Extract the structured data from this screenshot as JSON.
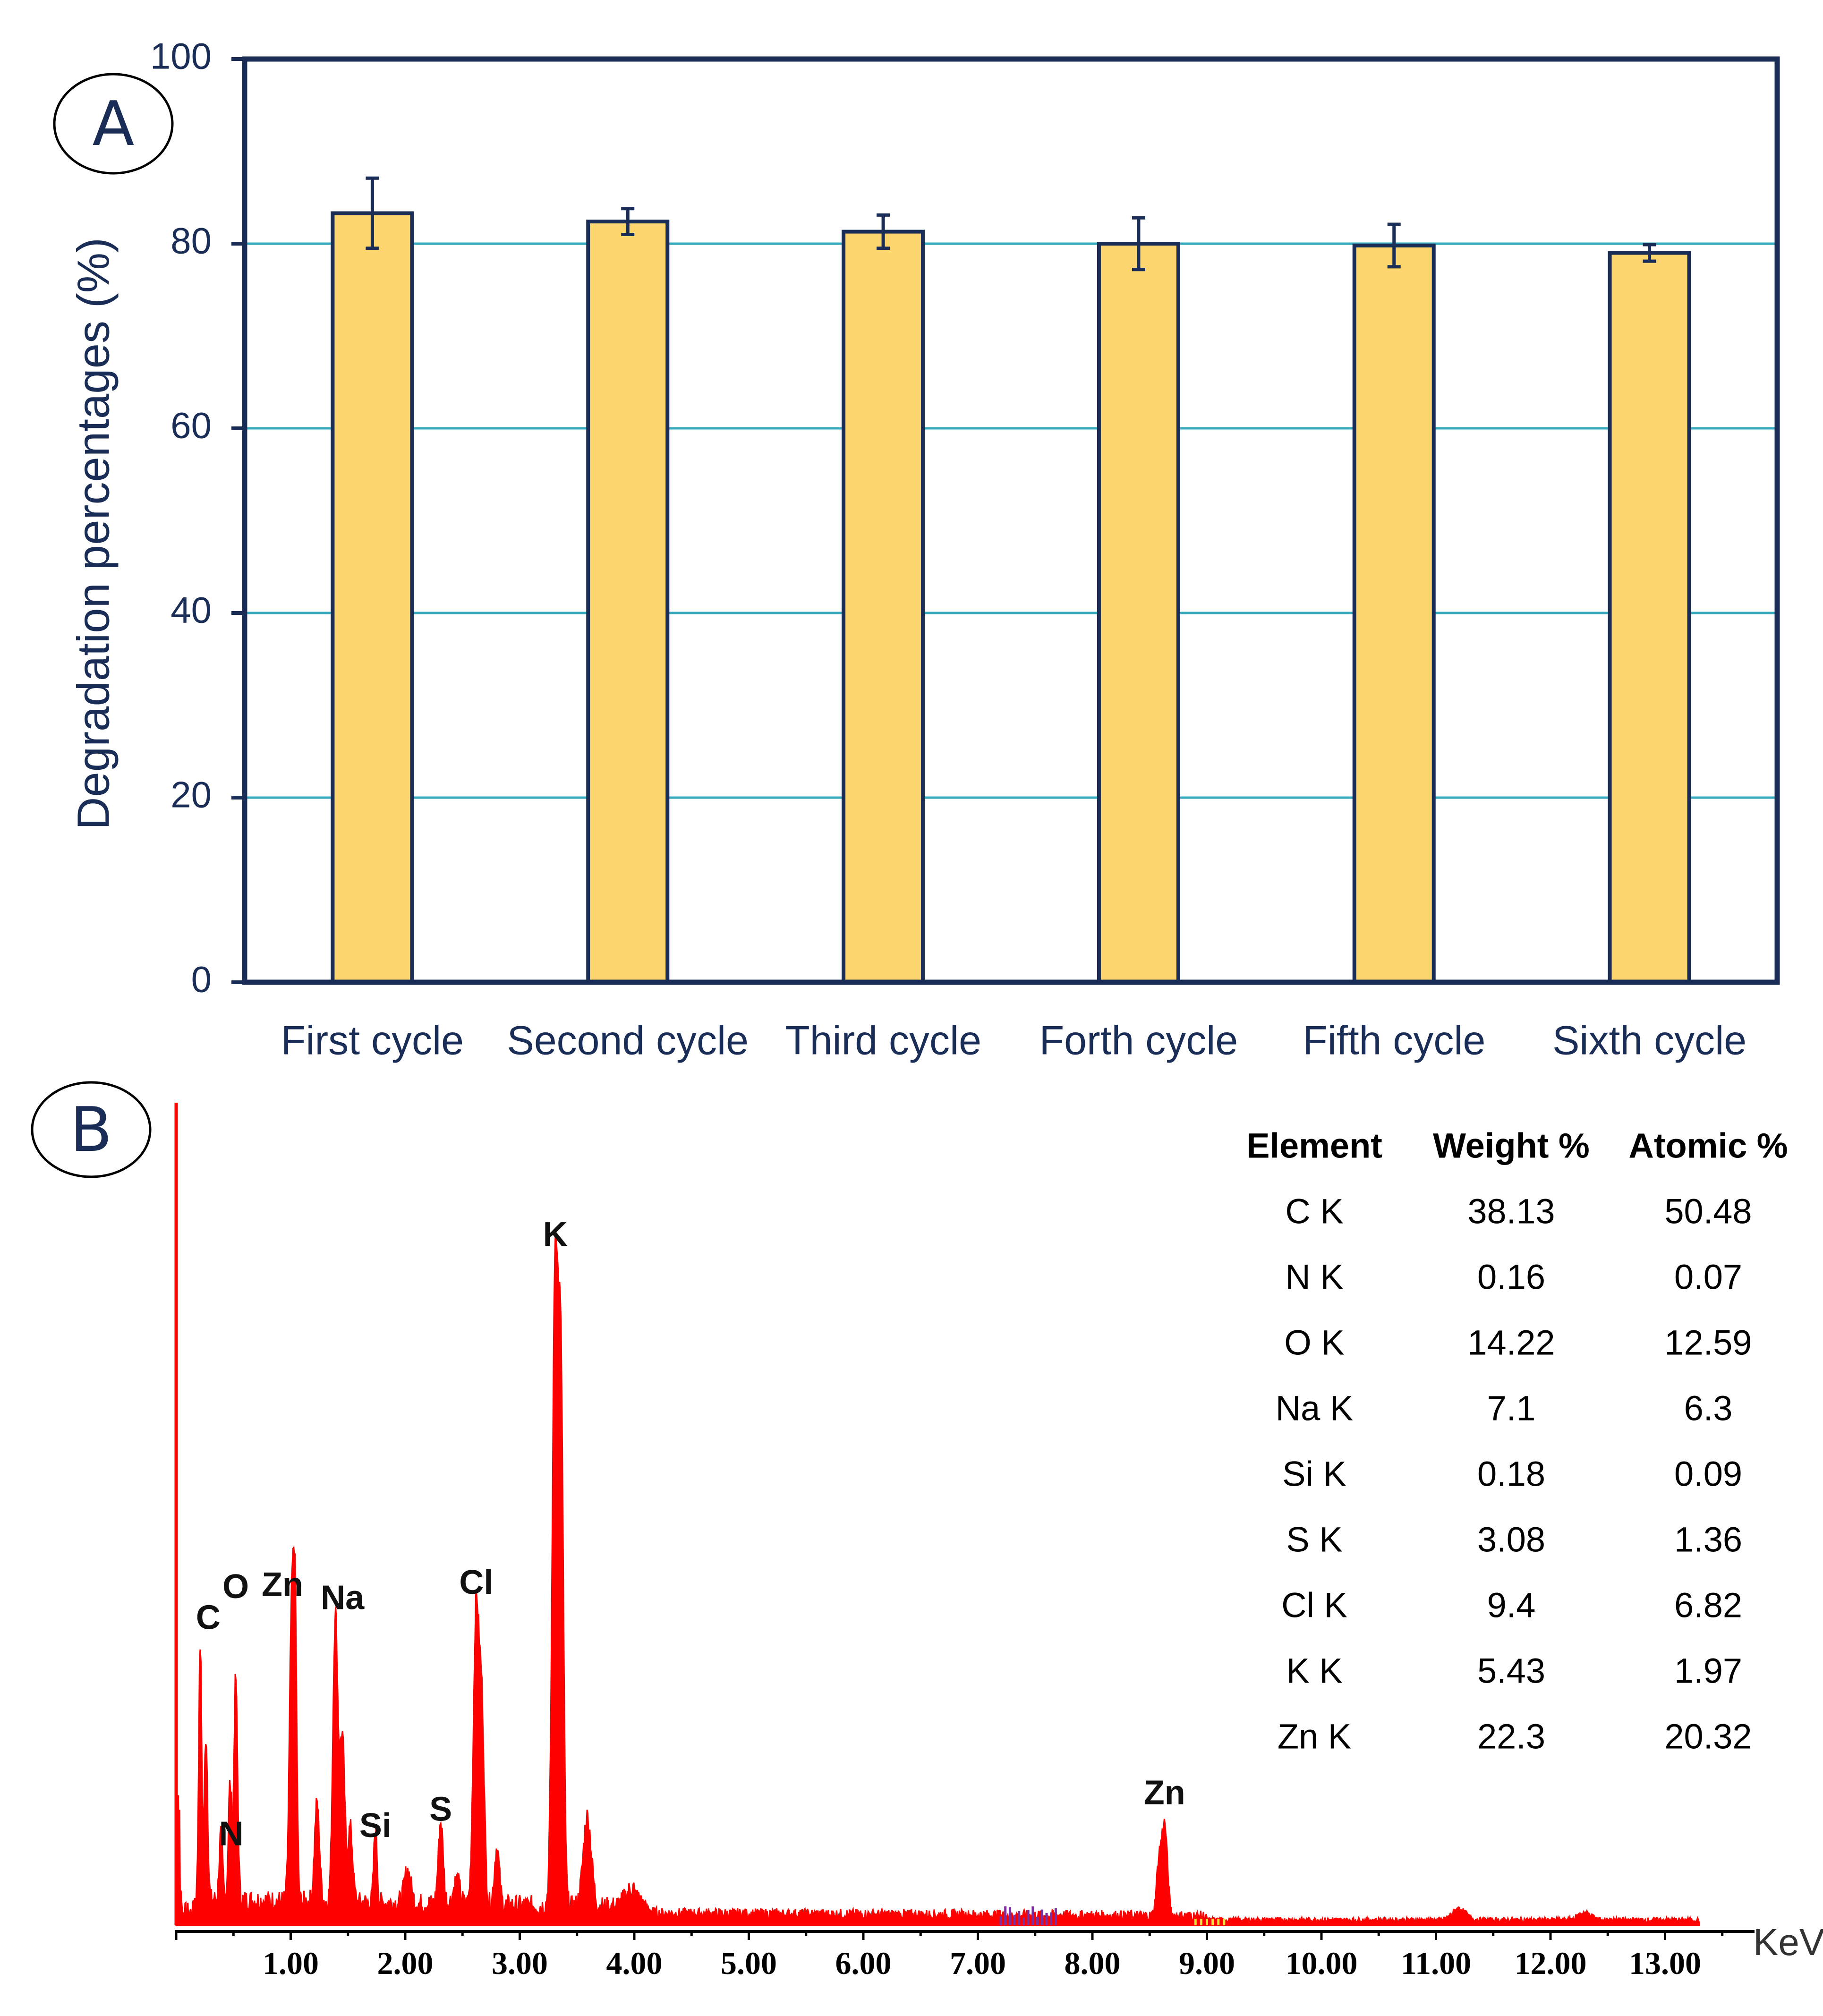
{
  "panels": {
    "a": {
      "label": "A"
    },
    "b": {
      "label": "B"
    }
  },
  "colors": {
    "navy": "#1a2d57",
    "grid": "#38aabd",
    "bar_fill": "#fdd56e",
    "bar_stroke": "#1a2d57",
    "spectrum": "#ff0000",
    "purple": "#7a2fa0",
    "yellow": "#e8e83a"
  },
  "chart_data": [
    {
      "type": "bar",
      "panel": "A",
      "title": "",
      "xlabel": "",
      "ylabel": "Degradation percentages (%)",
      "categories": [
        "First cycle",
        "Second cycle",
        "Third cycle",
        "Forth cycle",
        "Fifth cycle",
        "Sixth cycle"
      ],
      "values": [
        83.3,
        82.4,
        81.3,
        80.0,
        79.8,
        79.0
      ],
      "errors": [
        3.8,
        1.4,
        1.8,
        2.8,
        2.3,
        0.9
      ],
      "ylim": [
        0,
        100
      ],
      "yticks": [
        0,
        20,
        40,
        60,
        80,
        100
      ],
      "grid": true
    },
    {
      "type": "line",
      "panel": "B",
      "title": "",
      "xlabel": "KeV",
      "ylabel": "",
      "xlim": [
        0,
        13.5
      ],
      "xticks": [
        1,
        2,
        3,
        4,
        5,
        6,
        7,
        8,
        9,
        10,
        11,
        12,
        13
      ],
      "xtick_labels": [
        "1.00",
        "2.00",
        "3.00",
        "4.00",
        "5.00",
        "6.00",
        "7.00",
        "8.00",
        "9.00",
        "10.00",
        "11.00",
        "12.00",
        "13.00"
      ],
      "ylim": [
        0,
        100
      ],
      "peaks": [
        {
          "label": "C",
          "kev": 0.28,
          "height": 32
        },
        {
          "label": "N",
          "kev": 0.39,
          "height": 8
        },
        {
          "label": "O",
          "kev": 0.52,
          "height": 26
        },
        {
          "label": "Zn",
          "kev": 1.01,
          "height": 36
        },
        {
          "label": "Na",
          "kev": 1.04,
          "height": 35
        },
        {
          "label": "Si",
          "kev": 1.74,
          "height": 9
        },
        {
          "label": "S",
          "kev": 2.31,
          "height": 11
        },
        {
          "label": "Cl",
          "kev": 2.62,
          "height": 36
        },
        {
          "label": "K",
          "kev": 3.31,
          "height": 78
        },
        {
          "label": "Zn",
          "kev": 8.63,
          "height": 11
        }
      ],
      "table": {
        "headers": [
          "Element",
          "Weight %",
          "Atomic %"
        ],
        "rows": [
          [
            "C K",
            "38.13",
            "50.48"
          ],
          [
            "N K",
            "0.16",
            "0.07"
          ],
          [
            "O K",
            "14.22",
            "12.59"
          ],
          [
            "Na K",
            "7.1",
            "6.3"
          ],
          [
            "Si K",
            "0.18",
            "0.09"
          ],
          [
            "S K",
            "3.08",
            "1.36"
          ],
          [
            "Cl K",
            "9.4",
            "6.82"
          ],
          [
            "K K",
            "5.43",
            "1.97"
          ],
          [
            "Zn K",
            "22.3",
            "20.32"
          ]
        ]
      }
    }
  ]
}
